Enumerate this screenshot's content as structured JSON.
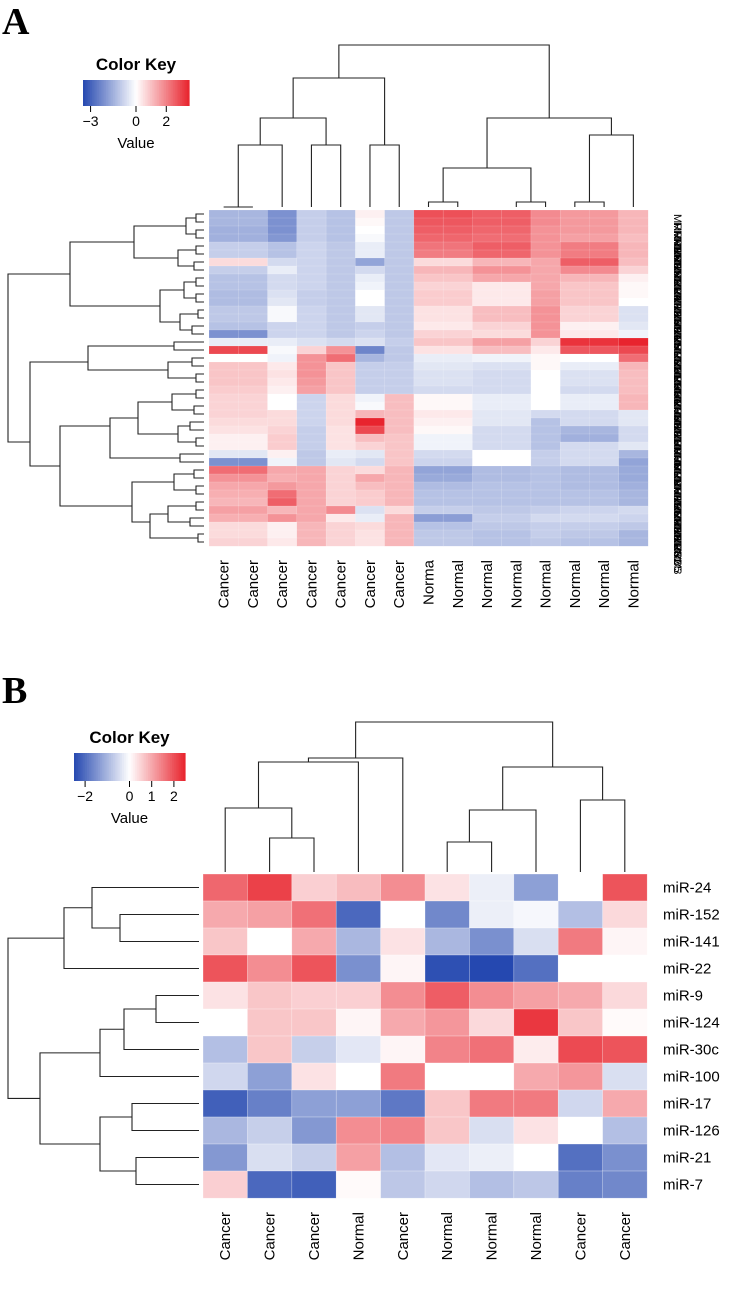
{
  "panels": [
    {
      "label": "A",
      "color_key": {
        "title": "Color Key",
        "xlabel": "Value",
        "range": [
          -3.5,
          3.5
        ],
        "ticks": [
          -3,
          0,
          2
        ],
        "tick_labels": [
          "−3",
          "0",
          "2"
        ]
      },
      "chart_data": {
        "type": "heatmap",
        "title": "",
        "columns": [
          "Cancer",
          "Cancer",
          "Cancer",
          "Cancer",
          "Cancer",
          "Cancer",
          "Cancer",
          "Norma",
          "Normal",
          "Normal",
          "Normal",
          "Normal",
          "Normal",
          "Normal",
          "Normal"
        ],
        "rows": [
          "MRM41",
          "MRM16",
          "MRM40",
          "MRM15",
          "MRM42",
          "MRM27",
          "MRM24",
          "MRM1",
          "MRM12",
          "MRM13",
          "MRM39",
          "MRM14",
          "MRM25",
          "MRM5",
          "MRM23",
          "MRM22",
          "MRM31",
          "MRM29",
          "MRM30",
          "MRM34",
          "MRM2",
          "MRM33",
          "MRM38",
          "MRM10",
          "MRM11",
          "MRM37",
          "MRM9",
          "MRM36",
          "MRM8",
          "MRM21",
          "MRM4",
          "MRM6",
          "MRM19",
          "MRM26",
          "MRM20",
          "MRM43",
          "MRM18",
          "MRM17",
          "MRM28",
          "MRM32",
          "MRM35",
          "MRM3"
        ],
        "values": [
          [
            -1.2,
            -1.2,
            -1.8,
            -0.8,
            -1.0,
            0.2,
            -0.9,
            2.4,
            2.4,
            2.2,
            2.2,
            1.6,
            1.4,
            1.4,
            1.0
          ],
          [
            -1.2,
            -1.2,
            -1.8,
            -0.8,
            -1.0,
            0.1,
            -0.9,
            2.3,
            2.3,
            2.2,
            2.2,
            1.6,
            1.4,
            1.4,
            1.0
          ],
          [
            -1.3,
            -1.3,
            -1.8,
            -0.8,
            -1.0,
            0.0,
            -0.9,
            2.2,
            2.2,
            2.1,
            2.1,
            1.5,
            1.4,
            1.4,
            1.0
          ],
          [
            -1.3,
            -1.3,
            -1.7,
            -0.8,
            -1.0,
            -0.1,
            -0.9,
            2.1,
            2.1,
            2.0,
            2.0,
            1.5,
            1.3,
            1.3,
            0.9
          ],
          [
            -0.8,
            -0.8,
            -1.0,
            -0.7,
            -0.9,
            -0.3,
            -0.9,
            1.9,
            1.9,
            2.2,
            2.2,
            1.5,
            1.8,
            1.8,
            1.0
          ],
          [
            -0.8,
            -0.8,
            -1.0,
            -0.7,
            -0.9,
            -0.3,
            -0.9,
            1.8,
            1.8,
            2.1,
            2.1,
            1.5,
            1.8,
            1.8,
            1.0
          ],
          [
            0.5,
            0.5,
            -0.6,
            -0.7,
            -0.9,
            -1.5,
            -0.9,
            0.5,
            0.5,
            1.0,
            1.0,
            1.2,
            2.2,
            2.2,
            0.9
          ],
          [
            -0.8,
            -0.8,
            -0.3,
            -0.7,
            -0.9,
            -0.6,
            -0.9,
            1.0,
            1.0,
            1.5,
            1.5,
            1.2,
            1.6,
            1.6,
            0.6
          ],
          [
            -1.0,
            -1.0,
            -0.6,
            -0.7,
            -0.9,
            -0.3,
            -0.9,
            0.8,
            0.8,
            1.2,
            1.2,
            1.2,
            1.0,
            1.0,
            0.2
          ],
          [
            -1.0,
            -1.0,
            -0.6,
            -0.7,
            -0.9,
            -0.2,
            -0.9,
            0.6,
            0.6,
            0.3,
            0.3,
            1.2,
            0.8,
            0.8,
            0.1
          ],
          [
            -1.1,
            -1.1,
            -0.5,
            -0.8,
            -0.9,
            0.0,
            -0.9,
            0.7,
            0.7,
            0.3,
            0.3,
            1.3,
            0.8,
            0.8,
            0.1
          ],
          [
            -1.1,
            -1.1,
            -0.4,
            -0.8,
            -0.9,
            0.0,
            -0.9,
            0.7,
            0.7,
            0.3,
            0.3,
            1.3,
            0.8,
            0.8,
            0.0
          ],
          [
            -0.9,
            -0.9,
            -0.1,
            -0.7,
            -0.9,
            -0.4,
            -0.9,
            0.4,
            0.4,
            0.9,
            0.9,
            1.5,
            0.6,
            0.6,
            -0.5
          ],
          [
            -0.9,
            -0.9,
            -0.1,
            -0.7,
            -0.9,
            -0.4,
            -0.9,
            0.4,
            0.4,
            0.9,
            0.9,
            1.5,
            0.6,
            0.6,
            -0.5
          ],
          [
            -1.0,
            -1.0,
            -0.7,
            -0.7,
            -0.9,
            -0.8,
            -0.9,
            0.3,
            0.3,
            0.6,
            0.6,
            1.5,
            0.2,
            0.2,
            -0.4
          ],
          [
            -1.8,
            -1.8,
            -0.7,
            -0.7,
            -0.9,
            -0.7,
            -0.9,
            0.6,
            0.6,
            0.5,
            0.5,
            1.5,
            0.3,
            0.3,
            -0.2
          ],
          [
            -0.3,
            -0.3,
            -0.3,
            -0.5,
            -0.6,
            -0.5,
            -0.8,
            0.8,
            0.8,
            1.3,
            1.3,
            0.6,
            2.8,
            2.8,
            3.0
          ],
          [
            2.5,
            2.5,
            -0.1,
            0.6,
            1.5,
            -2.0,
            -0.9,
            0.4,
            0.4,
            0.9,
            0.9,
            0.3,
            2.3,
            2.3,
            2.5
          ],
          [
            0.0,
            0.0,
            -0.2,
            1.5,
            2.0,
            -1.2,
            -0.9,
            -0.3,
            -0.3,
            -0.2,
            -0.2,
            0.1,
            0.0,
            0.0,
            2.0
          ],
          [
            0.8,
            0.8,
            0.3,
            1.5,
            0.8,
            -0.8,
            -0.8,
            -0.4,
            -0.4,
            -0.5,
            -0.5,
            0.1,
            -0.3,
            -0.3,
            1.0
          ],
          [
            0.8,
            0.8,
            0.4,
            1.5,
            0.8,
            -0.8,
            -0.8,
            -0.5,
            -0.5,
            -0.6,
            -0.6,
            0.0,
            -0.5,
            -0.5,
            0.9
          ],
          [
            0.8,
            0.8,
            0.3,
            1.4,
            0.8,
            -0.8,
            -0.8,
            -0.5,
            -0.5,
            -0.6,
            -0.6,
            0.0,
            -0.5,
            -0.5,
            0.9
          ],
          [
            0.7,
            0.7,
            0.2,
            1.3,
            0.8,
            -0.8,
            -0.8,
            -0.6,
            -0.6,
            -0.6,
            -0.6,
            0.0,
            -0.6,
            -0.6,
            0.9
          ],
          [
            0.6,
            0.6,
            0.0,
            -0.7,
            0.5,
            -0.2,
            0.9,
            0.1,
            0.1,
            -0.3,
            -0.3,
            0.0,
            -0.3,
            -0.3,
            1.0
          ],
          [
            0.6,
            0.6,
            0.0,
            -0.7,
            0.5,
            -0.1,
            0.9,
            0.1,
            0.1,
            -0.3,
            -0.3,
            0.0,
            -0.3,
            -0.3,
            1.0
          ],
          [
            0.6,
            0.6,
            0.5,
            -0.7,
            0.5,
            1.0,
            0.9,
            0.3,
            0.3,
            -0.4,
            -0.4,
            -0.6,
            -0.6,
            -0.6,
            -0.4
          ],
          [
            0.5,
            0.5,
            0.5,
            -0.7,
            0.5,
            3.0,
            0.9,
            0.2,
            0.2,
            -0.4,
            -0.4,
            -1.0,
            -0.6,
            -0.6,
            -0.4
          ],
          [
            0.4,
            0.4,
            0.6,
            -0.8,
            0.4,
            2.5,
            0.9,
            0.1,
            0.1,
            -0.6,
            -0.6,
            -1.0,
            -1.2,
            -1.2,
            -0.6
          ],
          [
            0.2,
            0.2,
            0.7,
            -0.8,
            0.4,
            0.9,
            0.8,
            -0.2,
            -0.2,
            -0.6,
            -0.6,
            -1.0,
            -1.3,
            -1.3,
            -0.6
          ],
          [
            0.2,
            0.2,
            0.7,
            -0.8,
            0.4,
            0.6,
            0.8,
            -0.2,
            -0.2,
            -0.6,
            -0.6,
            -1.0,
            -0.6,
            -0.6,
            -0.4
          ],
          [
            -0.4,
            -0.4,
            0.2,
            -0.9,
            -0.3,
            -0.4,
            0.8,
            -0.6,
            -0.6,
            0.0,
            0.0,
            -0.8,
            -0.6,
            -0.6,
            -1.2
          ],
          [
            -1.8,
            -1.8,
            -0.2,
            -0.9,
            -0.4,
            -0.6,
            0.8,
            -0.7,
            -0.7,
            0.0,
            0.0,
            -0.8,
            -0.6,
            -0.6,
            -1.5
          ],
          [
            2.0,
            2.0,
            1.2,
            1.2,
            0.6,
            0.5,
            1.0,
            -1.5,
            -1.5,
            -1.1,
            -1.1,
            -1.0,
            -1.1,
            -1.1,
            -1.4
          ],
          [
            1.5,
            1.5,
            1.1,
            1.2,
            0.6,
            1.2,
            1.0,
            -1.4,
            -1.4,
            -1.1,
            -1.1,
            -1.0,
            -1.1,
            -1.1,
            -1.4
          ],
          [
            1.2,
            1.2,
            1.4,
            1.2,
            0.6,
            0.9,
            1.0,
            -1.1,
            -1.1,
            -1.0,
            -1.0,
            -1.0,
            -1.1,
            -1.1,
            -1.3
          ],
          [
            1.1,
            1.1,
            2.0,
            1.2,
            0.6,
            0.7,
            1.0,
            -1.0,
            -1.0,
            -1.0,
            -1.0,
            -1.0,
            -1.0,
            -1.0,
            -1.2
          ],
          [
            1.0,
            1.0,
            2.2,
            1.2,
            0.6,
            0.7,
            1.0,
            -1.0,
            -1.0,
            -1.0,
            -1.0,
            -1.0,
            -1.0,
            -1.0,
            -1.2
          ],
          [
            1.3,
            1.3,
            1.0,
            1.2,
            1.6,
            -0.5,
            0.5,
            -0.8,
            -0.8,
            -0.9,
            -0.9,
            -0.8,
            -0.7,
            -0.7,
            -0.6
          ],
          [
            1.1,
            1.1,
            1.5,
            1.2,
            0.3,
            -0.3,
            1.0,
            -1.6,
            -1.6,
            -0.8,
            -0.8,
            -0.6,
            -0.6,
            -0.6,
            -0.7
          ],
          [
            0.5,
            0.5,
            0.2,
            1.0,
            0.6,
            0.5,
            1.0,
            -1.0,
            -1.0,
            -0.9,
            -0.9,
            -0.8,
            -0.8,
            -0.8,
            -0.9
          ],
          [
            0.5,
            0.5,
            0.2,
            1.0,
            0.6,
            0.4,
            1.0,
            -0.9,
            -0.9,
            -1.0,
            -1.0,
            -0.8,
            -0.9,
            -0.9,
            -1.2
          ],
          [
            0.6,
            0.6,
            0.3,
            1.0,
            0.6,
            0.4,
            1.0,
            -0.9,
            -0.9,
            -1.0,
            -1.0,
            -0.9,
            -1.0,
            -1.0,
            -1.2
          ]
        ]
      }
    },
    {
      "label": "B",
      "color_key": {
        "title": "Color Key",
        "xlabel": "Value",
        "range": [
          -2.5,
          2.5
        ],
        "ticks": [
          -2,
          0,
          1,
          2
        ],
        "tick_labels": [
          "−2",
          "0",
          "1",
          "2"
        ]
      },
      "chart_data": {
        "type": "heatmap",
        "title": "",
        "columns": [
          "Cancer",
          "Cancer",
          "Cancer",
          "Normal",
          "Cancer",
          "Normal",
          "Normal",
          "Normal",
          "Cancer",
          "Cancer"
        ],
        "rows": [
          "miR-24",
          "miR-152",
          "miR-141",
          "miR-22",
          "miR-9",
          "miR-124",
          "miR-30c",
          "miR-100",
          "miR-17",
          "miR-126",
          "miR-21",
          "miR-7"
        ],
        "values": [
          [
            1.6,
            2.0,
            0.5,
            0.7,
            1.2,
            0.3,
            -0.2,
            -1.2,
            0.0,
            1.8
          ],
          [
            0.9,
            1.0,
            1.5,
            -1.9,
            0.0,
            -1.5,
            -0.2,
            -0.1,
            -0.8,
            0.4
          ],
          [
            0.6,
            0.0,
            0.9,
            -0.9,
            0.3,
            -0.9,
            -1.4,
            -0.4,
            1.4,
            0.1
          ],
          [
            1.8,
            1.2,
            1.8,
            -1.4,
            0.1,
            -2.2,
            -2.4,
            -1.8,
            0.0,
            0.0
          ],
          [
            0.3,
            0.6,
            0.5,
            0.5,
            1.2,
            1.7,
            1.2,
            1.0,
            0.9,
            0.4
          ],
          [
            0.0,
            0.6,
            0.6,
            0.1,
            0.9,
            1.1,
            0.4,
            2.1,
            0.6,
            0.05
          ],
          [
            -0.8,
            0.6,
            -0.6,
            -0.3,
            0.1,
            1.3,
            1.5,
            0.2,
            1.9,
            1.8
          ],
          [
            -0.5,
            -1.2,
            0.3,
            0.0,
            1.4,
            0.0,
            0.0,
            0.9,
            1.1,
            -0.4
          ],
          [
            -2.0,
            -1.6,
            -1.2,
            -1.2,
            -1.7,
            0.6,
            1.4,
            1.4,
            -0.5,
            0.9
          ],
          [
            -0.9,
            -0.6,
            -1.3,
            1.2,
            1.3,
            0.6,
            -0.4,
            0.3,
            0.0,
            -0.8
          ],
          [
            -1.3,
            -0.4,
            -0.6,
            1.0,
            -0.8,
            -0.3,
            -0.2,
            0.0,
            -1.8,
            -1.4
          ],
          [
            0.5,
            -1.9,
            -2.0,
            0.05,
            -0.7,
            -0.5,
            -0.8,
            -0.7,
            -1.6,
            -1.5
          ]
        ]
      }
    }
  ]
}
